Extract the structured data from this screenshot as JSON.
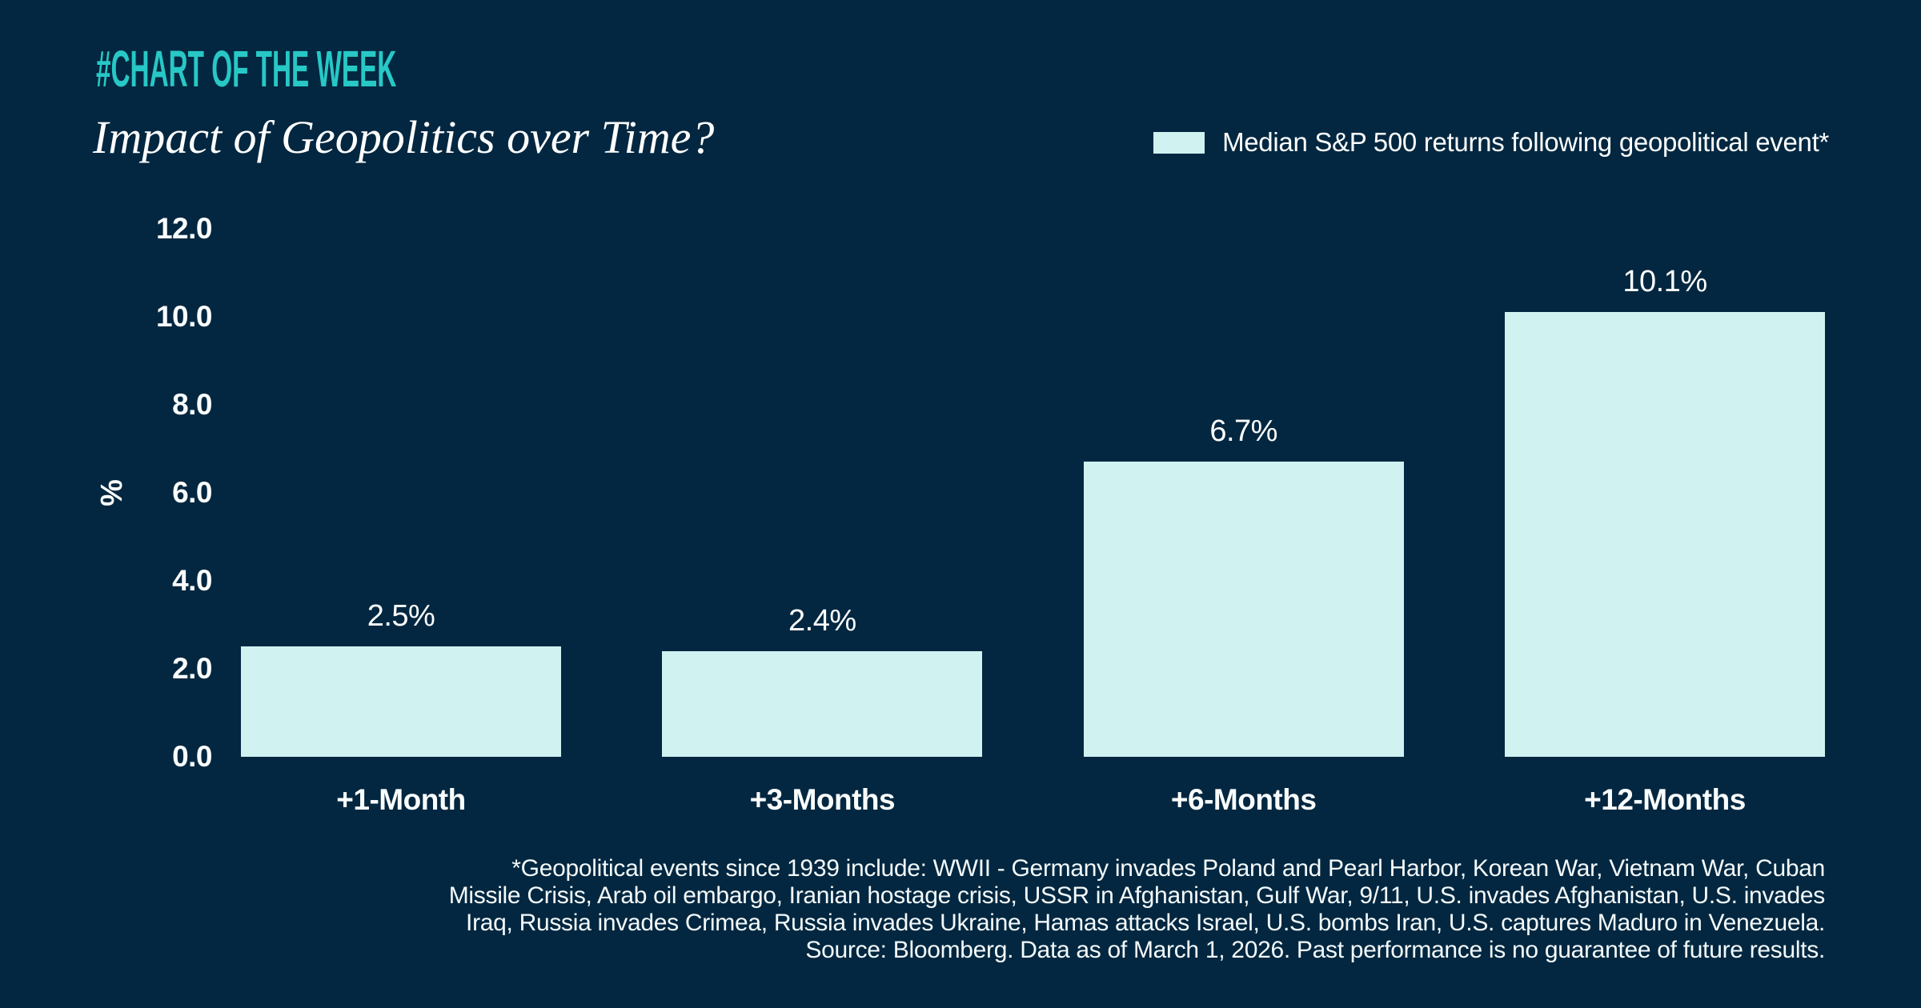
{
  "header": {
    "hashtag": "#CHART OF THE WEEK",
    "title": "Impact of Geopolitics over Time?"
  },
  "legend": {
    "label": "Median S&P 500 returns following geopolitical event*",
    "swatch_color": "#D0F2F1"
  },
  "chart_data": {
    "type": "bar",
    "title": "Impact of Geopolitics over Time?",
    "categories": [
      "+1-Month",
      "+3-Months",
      "+6-Months",
      "+12-Months"
    ],
    "values": [
      2.5,
      2.4,
      6.7,
      10.1
    ],
    "value_labels": [
      "2.5%",
      "2.4%",
      "6.7%",
      "10.1%"
    ],
    "series_name": "Median S&P 500 returns following geopolitical event*",
    "xlabel": "",
    "ylabel": "%",
    "ylim": [
      0,
      12
    ],
    "yticks": [
      "12.0",
      "10.0",
      "8.0",
      "6.0",
      "4.0",
      "2.0",
      "0.0"
    ],
    "grid": false,
    "legend_position": "top-right",
    "bar_color": "#D0F2F1",
    "background_color": "#032740"
  },
  "footnote": {
    "lines": [
      "*Geopolitical events since 1939 include: WWII - Germany invades Poland and Pearl Harbor, Korean War, Vietnam War, Cuban",
      "Missile Crisis, Arab oil embargo, Iranian hostage crisis, USSR in Afghanistan, Gulf War, 9/11, U.S. invades Afghanistan, U.S. invades",
      "Iraq, Russia invades Crimea, Russia invades Ukraine, Hamas attacks Israel, U.S. bombs Iran, U.S. captures Maduro in Venezuela.",
      "Source: Bloomberg. Data as of March 1, 2026. Past performance is no guarantee of future results."
    ]
  },
  "colors": {
    "background": "#032740",
    "accent_teal": "#27C8C6",
    "bar_fill": "#D0F2F1",
    "text": "#FFFFFF"
  }
}
